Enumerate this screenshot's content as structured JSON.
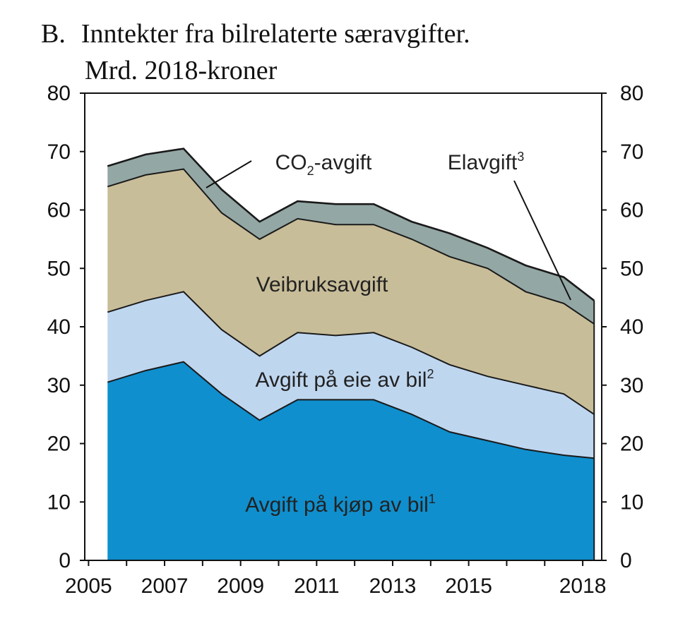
{
  "chart_data": {
    "type": "area",
    "title_prefix": "B.",
    "title": "Inntekter fra bilrelaterte særavgifter.",
    "subtitle": "Mrd. 2018-kroner",
    "stacked": true,
    "x": [
      2005.5,
      2006.5,
      2007.5,
      2008.5,
      2009.5,
      2010.5,
      2011.5,
      2012.5,
      2013.5,
      2014.5,
      2015.5,
      2016.5,
      2017.5,
      2018.3
    ],
    "series": [
      {
        "name": "Avgift på kjøp av bil",
        "sup": "1",
        "color": "#0f8fce",
        "values": [
          30.5,
          32.5,
          34.0,
          28.5,
          24.0,
          27.5,
          27.5,
          27.5,
          25.0,
          22.0,
          20.5,
          19.0,
          18.0,
          17.5
        ]
      },
      {
        "name": "Avgift på eie av bil",
        "sup": "2",
        "color": "#bfd6ef",
        "values": [
          12.0,
          12.0,
          12.0,
          11.0,
          11.0,
          11.5,
          11.0,
          11.5,
          11.5,
          11.5,
          11.0,
          11.0,
          10.5,
          7.5
        ]
      },
      {
        "name": "Veibruksavgift",
        "sup": "",
        "color": "#c8bd99",
        "values": [
          21.5,
          21.5,
          21.0,
          20.0,
          20.0,
          19.5,
          19.0,
          18.5,
          18.5,
          18.5,
          18.5,
          16.0,
          15.5,
          15.5
        ]
      },
      {
        "name": "CO",
        "sub": "2",
        "suffix": "-avgift",
        "sup": "",
        "color": "#93a7a4",
        "values": [
          3.5,
          3.5,
          3.5,
          4.0,
          3.0,
          3.0,
          3.5,
          3.5,
          3.0,
          4.0,
          3.5,
          4.5,
          4.5,
          4.0
        ]
      },
      {
        "name": "Elavgift",
        "sup": "3",
        "color": "#93a7a4",
        "values": [
          0,
          0,
          0,
          0,
          0,
          0,
          0,
          0,
          0,
          0,
          0,
          0,
          0,
          0
        ]
      }
    ],
    "x_tick_labels": [
      "2005",
      "2007",
      "2009",
      "2011",
      "2013",
      "2015",
      "2018"
    ],
    "x_tick_values": [
      2005,
      2007,
      2009,
      2011,
      2013,
      2015,
      2018
    ],
    "xlim": [
      2004.9,
      2018.5
    ],
    "x_minor_ticks": [
      2005,
      2006,
      2007,
      2008,
      2009,
      2010,
      2011,
      2012,
      2013,
      2014,
      2015,
      2016,
      2017,
      2018
    ],
    "y_ticks": [
      0,
      10,
      20,
      30,
      40,
      50,
      60,
      70,
      80
    ],
    "ylim": [
      0,
      80
    ],
    "left_axis": true,
    "right_axis": true,
    "grid": false
  }
}
